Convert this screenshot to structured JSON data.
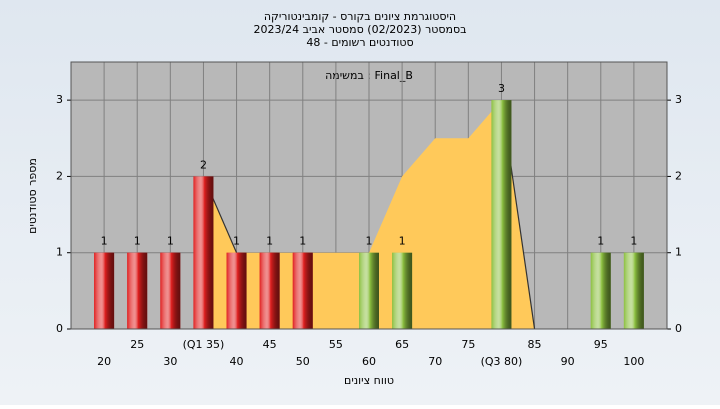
{
  "chart_data": {
    "type": "bar",
    "title": "היסטוגרמת ציונים בקורס - קומבינטוריקה",
    "subtitle": "בסמסטר (02/2023) סמסטר אביב 2023/24",
    "subtitle2": "סטודנטים רשומים - 48",
    "annotation": "במשימה : Final_B",
    "y_label": "מספר סטודנטים",
    "x_label": "טווח ציונים",
    "categories": [
      "20",
      "25",
      "30",
      "(Q1 35)",
      "40",
      "45",
      "50",
      "55",
      "60",
      "65",
      "70",
      "75",
      "(Q3 80)",
      "85",
      "90",
      "95",
      "100"
    ],
    "series": [
      {
        "type": "area",
        "color": "#ffc95a",
        "values": [
          null,
          null,
          null,
          2,
          1,
          1,
          1,
          1,
          1,
          2,
          2.5,
          2.5,
          3,
          0,
          null,
          null,
          null
        ]
      },
      {
        "type": "line",
        "color": "#333333",
        "values": [
          null,
          null,
          null,
          2,
          1,
          null,
          null,
          null,
          null,
          null,
          null,
          null,
          3,
          0,
          null,
          null,
          null
        ]
      },
      {
        "type": "bar",
        "values": [
          1,
          1,
          1,
          2,
          1,
          1,
          1,
          0,
          1,
          1,
          0,
          0,
          3,
          0,
          0,
          1,
          1
        ],
        "colors": [
          "#e02020",
          "#e02020",
          "#e02020",
          "#e02020",
          "#e02020",
          "#e02020",
          "#e02020",
          "#e02020",
          "#8cc040",
          "#8cc040",
          "#8cc040",
          "#8cc040",
          "#8cc040",
          "#8cc040",
          "#8cc040",
          "#8cc040",
          "#8cc040"
        ]
      }
    ],
    "ylim": [
      0,
      3.5
    ],
    "yticks": [
      0,
      1,
      2,
      3
    ],
    "grid": true
  }
}
